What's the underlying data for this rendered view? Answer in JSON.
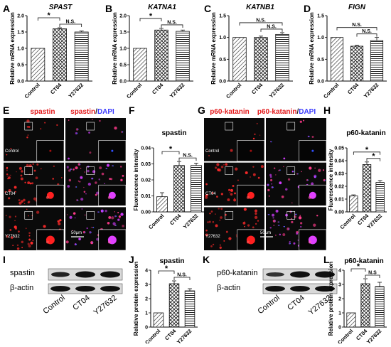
{
  "panels": {
    "A": "A",
    "B": "B",
    "C": "C",
    "D": "D",
    "E": "E",
    "F": "F",
    "G": "G",
    "H": "H",
    "I": "I",
    "J": "J",
    "K": "K",
    "L": "L"
  },
  "axis_labels": {
    "rel_mrna": "Relative mRNA expression",
    "fluor": "Fluorescence intensity",
    "rel_protein": "Relative protein expression"
  },
  "categories": [
    "Control",
    "CT04",
    "Y27632"
  ],
  "signif": {
    "star": "*",
    "ns": "N.S.",
    "ns_alt": "N.S"
  },
  "micrographs": {
    "E": {
      "title_a": "spastin",
      "title_b1": "spastin",
      "title_b2": "/",
      "title_b3": "DAPI",
      "rows": [
        "Control",
        "CT04",
        "Y27632"
      ],
      "scale": "50μm"
    },
    "G": {
      "title_a": "p60-katanin",
      "title_b1": "p60-katanin",
      "title_b2": "/",
      "title_b3": "DAPI",
      "rows": [
        "Control",
        "CT04",
        "Y27632"
      ],
      "scale": "50μm"
    }
  },
  "blots": {
    "I": {
      "rows": [
        "spastin",
        "β-actin"
      ]
    },
    "K": {
      "rows": [
        "p60-katanin",
        "β-actin"
      ]
    }
  },
  "chart_data": [
    {
      "panel": "A",
      "type": "bar",
      "title": "SPAST",
      "ylabel": "Relative mRNA expression",
      "categories": [
        "Control",
        "CT04",
        "Y27632"
      ],
      "values": [
        1.0,
        1.6,
        1.5
      ],
      "errors": [
        0.0,
        0.03,
        0.03
      ],
      "ylim": [
        0,
        2.0
      ],
      "yticks": [
        "0.0",
        "0.5",
        "1.0",
        "1.5",
        "2.0"
      ],
      "tick_values": [
        0,
        0.5,
        1.0,
        1.5,
        2.0
      ],
      "annotations": [
        {
          "from": 0,
          "to": 1,
          "label": "*"
        },
        {
          "from": 1,
          "to": 2,
          "label": "N.S."
        }
      ]
    },
    {
      "panel": "B",
      "type": "bar",
      "title": "KATNA1",
      "ylabel": "Relative mRNA expression",
      "categories": [
        "Control",
        "CT04",
        "Y27632"
      ],
      "values": [
        1.0,
        1.56,
        1.52
      ],
      "errors": [
        0.0,
        0.05,
        0.04
      ],
      "ylim": [
        0,
        2.0
      ],
      "yticks": [
        "0.0",
        "0.5",
        "1.0",
        "1.5",
        "2.0"
      ],
      "tick_values": [
        0,
        0.5,
        1.0,
        1.5,
        2.0
      ],
      "annotations": [
        {
          "from": 0,
          "to": 1,
          "label": "*"
        },
        {
          "from": 1,
          "to": 2,
          "label": "N.S."
        }
      ]
    },
    {
      "panel": "C",
      "type": "bar",
      "title": "KATNB1",
      "ylabel": "Relative mRNA expression",
      "categories": [
        "Control",
        "CT04",
        "Y27632"
      ],
      "values": [
        1.0,
        1.0,
        1.07
      ],
      "errors": [
        0.0,
        0.03,
        0.04
      ],
      "ylim": [
        0,
        1.5
      ],
      "yticks": [
        "0.0",
        "0.5",
        "1.0",
        "1.5"
      ],
      "tick_values": [
        0,
        0.5,
        1.0,
        1.5
      ],
      "annotations": [
        {
          "from": 0,
          "to": 2,
          "label": "N.S."
        },
        {
          "from": 1,
          "to": 2,
          "label": "N.S."
        }
      ]
    },
    {
      "panel": "D",
      "type": "bar",
      "title": "FIGN",
      "ylabel": "Relative mRNA expression",
      "categories": [
        "Control",
        "CT04",
        "Y27632"
      ],
      "values": [
        1.0,
        0.8,
        0.93
      ],
      "errors": [
        0.0,
        0.02,
        0.07
      ],
      "ylim": [
        0,
        1.5
      ],
      "yticks": [
        "0.0",
        "0.5",
        "1.0",
        "1.5"
      ],
      "tick_values": [
        0,
        0.5,
        1.0,
        1.5
      ],
      "annotations": [
        {
          "from": 0,
          "to": 2,
          "label": "N.S."
        },
        {
          "from": 1,
          "to": 2,
          "label": "N.S."
        }
      ]
    },
    {
      "panel": "F",
      "type": "bar",
      "title": "spastin",
      "ylabel": "Fluorescence intensity",
      "categories": [
        "Control",
        "CT04",
        "Y27632"
      ],
      "values": [
        0.0095,
        0.029,
        0.029
      ],
      "errors": [
        0.0025,
        0.0025,
        0.0015
      ],
      "ylim": [
        0,
        0.04
      ],
      "yticks": [
        "0.00",
        "0.01",
        "0.02",
        "0.03",
        "0.04"
      ],
      "tick_values": [
        0,
        0.01,
        0.02,
        0.03,
        0.04
      ],
      "annotations": [
        {
          "from": 0,
          "to": 1,
          "label": "*"
        },
        {
          "from": 1,
          "to": 2,
          "label": "N.S."
        }
      ]
    },
    {
      "panel": "H",
      "type": "bar",
      "title": "p60-katanin",
      "ylabel": "Fluorescence intensity",
      "categories": [
        "Control",
        "CT04",
        "Y27632"
      ],
      "values": [
        0.0125,
        0.037,
        0.023
      ],
      "errors": [
        0.0008,
        0.002,
        0.0015
      ],
      "ylim": [
        0,
        0.05
      ],
      "yticks": [
        "0.00",
        "0.01",
        "0.02",
        "0.03",
        "0.04",
        "0.05"
      ],
      "tick_values": [
        0,
        0.01,
        0.02,
        0.03,
        0.04,
        0.05
      ],
      "annotations": [
        {
          "from": 0,
          "to": 2,
          "label": "*"
        },
        {
          "from": 1,
          "to": 2,
          "label": "*"
        }
      ]
    },
    {
      "panel": "J",
      "type": "bar",
      "title": "spastin",
      "ylabel": "Relative protein expression",
      "categories": [
        "Control",
        "CT04",
        "Y27632"
      ],
      "values": [
        1.0,
        3.05,
        2.55
      ],
      "errors": [
        0.0,
        0.2,
        0.15
      ],
      "ylim": [
        0,
        4
      ],
      "yticks": [
        "0",
        "1",
        "2",
        "3",
        "4"
      ],
      "tick_values": [
        0,
        1,
        2,
        3,
        4
      ],
      "annotations": [
        {
          "from": 0,
          "to": 1,
          "label": "*"
        },
        {
          "from": 1,
          "to": 2,
          "label": "N.S."
        }
      ]
    },
    {
      "panel": "L",
      "type": "bar",
      "title": "p60-katanin",
      "ylabel": "Relative protein expression",
      "categories": [
        "Control",
        "CT04",
        "Y27632"
      ],
      "values": [
        1.0,
        3.05,
        2.85
      ],
      "errors": [
        0.0,
        0.35,
        0.3
      ],
      "ylim": [
        0,
        4
      ],
      "yticks": [
        "0",
        "1",
        "2",
        "3",
        "4"
      ],
      "tick_values": [
        0,
        1,
        2,
        3,
        4
      ],
      "annotations": [
        {
          "from": 0,
          "to": 1,
          "label": "*"
        },
        {
          "from": 1,
          "to": 2,
          "label": "N.S"
        }
      ]
    }
  ]
}
